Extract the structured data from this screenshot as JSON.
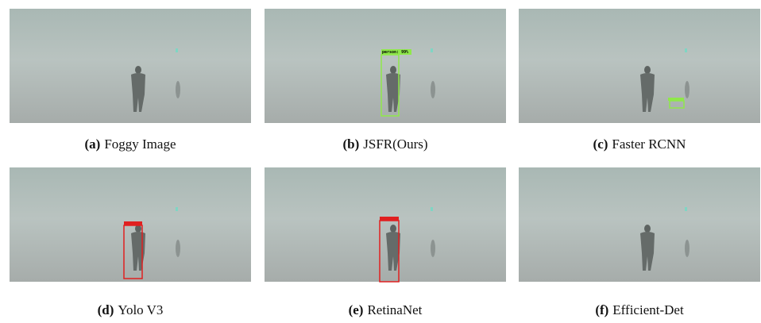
{
  "panels": [
    {
      "tag": "(a)",
      "caption": "Foggy Image"
    },
    {
      "tag": "(b)",
      "caption": "JSFR(Ours)",
      "box_label": "person: 99%"
    },
    {
      "tag": "(c)",
      "caption": "Faster RCNN"
    },
    {
      "tag": "(d)",
      "caption": "Yolo V3"
    },
    {
      "tag": "(e)",
      "caption": "RetinaNet"
    },
    {
      "tag": "(f)",
      "caption": "Efficient-Det"
    }
  ]
}
